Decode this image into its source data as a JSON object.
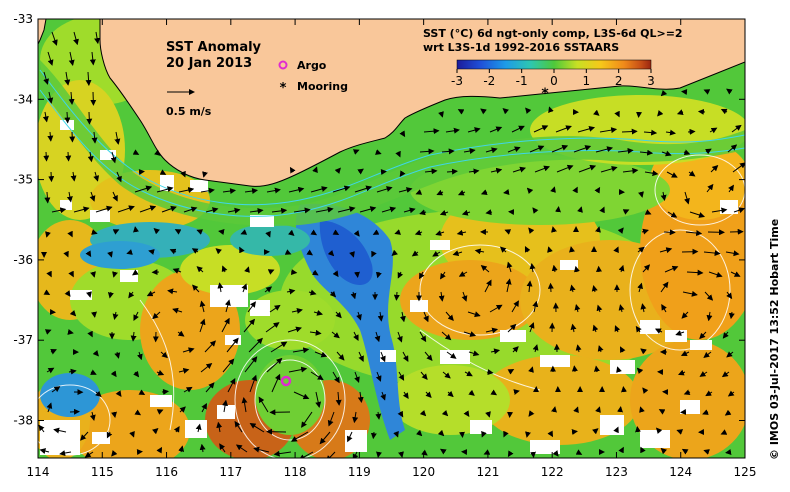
{
  "map": {
    "title": "SST Anomaly",
    "date": "20 Jan 2013",
    "scale_label": "0.5 m/s",
    "legend_argo": "Argo",
    "legend_mooring": "Mooring",
    "colorbar_title_1": "SST (°C) 6d ngt-only comp, L3S-6d QL>=2",
    "colorbar_title_2": "wrt L3S-1d 1992-2016 SSTAARS",
    "colorbar_ticks": [
      "-3",
      "-2",
      "-1",
      "0",
      "1",
      "2",
      "3"
    ],
    "credit": "©  IMOS 03-Jul-2017 13:52 Hobart Time",
    "x_ticks": [
      "114",
      "115",
      "116",
      "117",
      "118",
      "119",
      "120",
      "121",
      "122",
      "123",
      "124",
      "125"
    ],
    "y_ticks": [
      "-33",
      "-34",
      "-35",
      "-36",
      "-37",
      "-38"
    ],
    "colors": {
      "land": "#f9c79a",
      "cold": "#1f6fd0",
      "teal": "#3ab9a8",
      "green": "#3fc23a",
      "yellowgreen": "#b8e02a",
      "yellow": "#f2d21b",
      "orange": "#f29a1c",
      "brown": "#b0561c",
      "argo": "#e02bd0",
      "colorbar": [
        "#1b1b9a",
        "#1f4fd8",
        "#1e9be8",
        "#2ec7b0",
        "#4ec93b",
        "#c8e024",
        "#f6c81a",
        "#f08a1a",
        "#c54d16",
        "#9a2610"
      ]
    }
  }
}
